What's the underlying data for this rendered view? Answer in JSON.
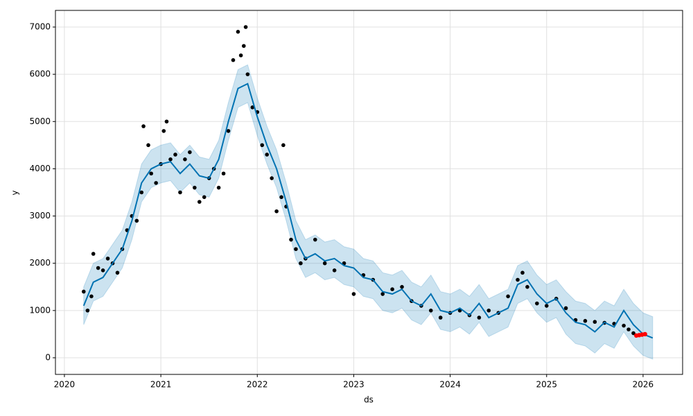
{
  "chart_data": {
    "type": "forecast",
    "xlabel": "ds",
    "ylabel": "y",
    "xlim": [
      2019.907,
      2026.41
    ],
    "ylim": [
      -352,
      7352
    ],
    "xticks": [
      2020,
      2021,
      2022,
      2023,
      2024,
      2025,
      2026
    ],
    "yticks": [
      0,
      1000,
      2000,
      3000,
      4000,
      5000,
      6000,
      7000
    ],
    "grid": true,
    "interval": {
      "color": "#0072b2",
      "x": [
        2020.2,
        2020.3,
        2020.4,
        2020.5,
        2020.6,
        2020.7,
        2020.8,
        2020.9,
        2021.0,
        2021.1,
        2021.2,
        2021.3,
        2021.4,
        2021.5,
        2021.6,
        2021.7,
        2021.8,
        2021.9,
        2022.0,
        2022.1,
        2022.2,
        2022.3,
        2022.4,
        2022.5,
        2022.6,
        2022.7,
        2022.8,
        2022.9,
        2023.0,
        2023.1,
        2023.2,
        2023.3,
        2023.4,
        2023.5,
        2023.6,
        2023.7,
        2023.8,
        2023.9,
        2024.0,
        2024.1,
        2024.2,
        2024.3,
        2024.4,
        2024.5,
        2024.6,
        2024.7,
        2024.8,
        2024.9,
        2025.0,
        2025.1,
        2025.2,
        2025.3,
        2025.4,
        2025.5,
        2025.6,
        2025.7,
        2025.8,
        2025.9,
        2026.0,
        2026.1
      ],
      "lower": [
        700,
        1200,
        1300,
        1600,
        1900,
        2500,
        3300,
        3600,
        3700,
        3750,
        3500,
        3700,
        3450,
        3400,
        3800,
        4600,
        5300,
        5400,
        4700,
        4100,
        3600,
        2900,
        2100,
        1700,
        1800,
        1650,
        1700,
        1550,
        1500,
        1300,
        1250,
        1000,
        950,
        1050,
        800,
        700,
        950,
        600,
        550,
        650,
        500,
        750,
        450,
        550,
        650,
        1150,
        1250,
        950,
        750,
        850,
        500,
        300,
        250,
        100,
        300,
        200,
        550,
        250,
        50,
        -30
      ],
      "upper": [
        1500,
        2000,
        2100,
        2400,
        2700,
        3300,
        4100,
        4400,
        4500,
        4550,
        4300,
        4500,
        4250,
        4200,
        4600,
        5400,
        6100,
        6200,
        5500,
        4900,
        4400,
        3700,
        2900,
        2500,
        2600,
        2450,
        2500,
        2350,
        2300,
        2100,
        2050,
        1800,
        1750,
        1850,
        1600,
        1500,
        1750,
        1400,
        1350,
        1450,
        1300,
        1550,
        1250,
        1350,
        1450,
        1950,
        2050,
        1750,
        1550,
        1650,
        1400,
        1200,
        1150,
        1000,
        1200,
        1100,
        1450,
        1150,
        950,
        870
      ]
    },
    "forecast": {
      "color": "#0072b2",
      "x": [
        2020.2,
        2020.3,
        2020.4,
        2020.5,
        2020.6,
        2020.7,
        2020.8,
        2020.9,
        2021.0,
        2021.1,
        2021.2,
        2021.3,
        2021.4,
        2021.5,
        2021.6,
        2021.7,
        2021.8,
        2021.9,
        2022.0,
        2022.1,
        2022.2,
        2022.3,
        2022.4,
        2022.5,
        2022.6,
        2022.7,
        2022.8,
        2022.9,
        2023.0,
        2023.1,
        2023.2,
        2023.3,
        2023.4,
        2023.5,
        2023.6,
        2023.7,
        2023.8,
        2023.9,
        2024.0,
        2024.1,
        2024.2,
        2024.3,
        2024.4,
        2024.5,
        2024.6,
        2024.7,
        2024.8,
        2024.9,
        2025.0,
        2025.1,
        2025.2,
        2025.3,
        2025.4,
        2025.5,
        2025.6,
        2025.7,
        2025.8,
        2025.9,
        2026.0,
        2026.1
      ],
      "values": [
        1100,
        1600,
        1700,
        2000,
        2300,
        2900,
        3700,
        4000,
        4100,
        4150,
        3900,
        4100,
        3850,
        3800,
        4200,
        5000,
        5700,
        5800,
        5100,
        4500,
        4000,
        3300,
        2500,
        2100,
        2200,
        2050,
        2100,
        1950,
        1900,
        1700,
        1650,
        1400,
        1350,
        1450,
        1200,
        1100,
        1350,
        1000,
        950,
        1050,
        900,
        1150,
        850,
        950,
        1050,
        1550,
        1650,
        1350,
        1150,
        1250,
        950,
        750,
        700,
        550,
        750,
        650,
        1000,
        700,
        500,
        420
      ]
    },
    "observed": {
      "color": "#000000",
      "x": [
        2020.2,
        2020.24,
        2020.28,
        2020.3,
        2020.35,
        2020.4,
        2020.45,
        2020.5,
        2020.55,
        2020.6,
        2020.65,
        2020.7,
        2020.75,
        2020.8,
        2020.82,
        2020.87,
        2020.9,
        2020.95,
        2021.0,
        2021.03,
        2021.06,
        2021.1,
        2021.15,
        2021.2,
        2021.25,
        2021.3,
        2021.35,
        2021.4,
        2021.45,
        2021.5,
        2021.55,
        2021.6,
        2021.65,
        2021.7,
        2021.75,
        2021.8,
        2021.83,
        2021.86,
        2021.88,
        2021.9,
        2021.95,
        2022.0,
        2022.05,
        2022.1,
        2022.15,
        2022.2,
        2022.25,
        2022.27,
        2022.3,
        2022.35,
        2022.4,
        2022.45,
        2022.5,
        2022.6,
        2022.7,
        2022.8,
        2022.9,
        2023.0,
        2023.1,
        2023.2,
        2023.3,
        2023.4,
        2023.5,
        2023.6,
        2023.7,
        2023.8,
        2023.9,
        2024.0,
        2024.1,
        2024.2,
        2024.3,
        2024.4,
        2024.5,
        2024.6,
        2024.7,
        2024.75,
        2024.8,
        2024.9,
        2025.0,
        2025.1,
        2025.2,
        2025.3,
        2025.4,
        2025.5,
        2025.6,
        2025.7,
        2025.8,
        2025.85,
        2025.9
      ],
      "values": [
        1400,
        1000,
        1300,
        2200,
        1900,
        1850,
        2100,
        2000,
        1800,
        2300,
        2700,
        3000,
        2900,
        3500,
        4900,
        4500,
        3900,
        3700,
        4100,
        4800,
        5000,
        4200,
        4300,
        3500,
        4200,
        4350,
        3600,
        3300,
        3400,
        3800,
        4000,
        3600,
        3900,
        4800,
        6300,
        6900,
        6400,
        6600,
        7000,
        6000,
        5300,
        5200,
        4500,
        4300,
        3800,
        3100,
        3400,
        4500,
        3200,
        2500,
        2300,
        2000,
        2100,
        2500,
        2000,
        1850,
        2000,
        1350,
        1750,
        1650,
        1350,
        1450,
        1500,
        1200,
        1100,
        1000,
        850,
        950,
        1000,
        900,
        850,
        1000,
        950,
        1300,
        1650,
        1800,
        1500,
        1150,
        1100,
        1250,
        1050,
        800,
        780,
        760,
        740,
        720,
        680,
        600,
        520
      ]
    },
    "recent": {
      "color": "#ff0000",
      "x": [
        2025.93,
        2025.96,
        2025.99,
        2026.02
      ],
      "values": [
        470,
        480,
        490,
        500
      ]
    }
  }
}
